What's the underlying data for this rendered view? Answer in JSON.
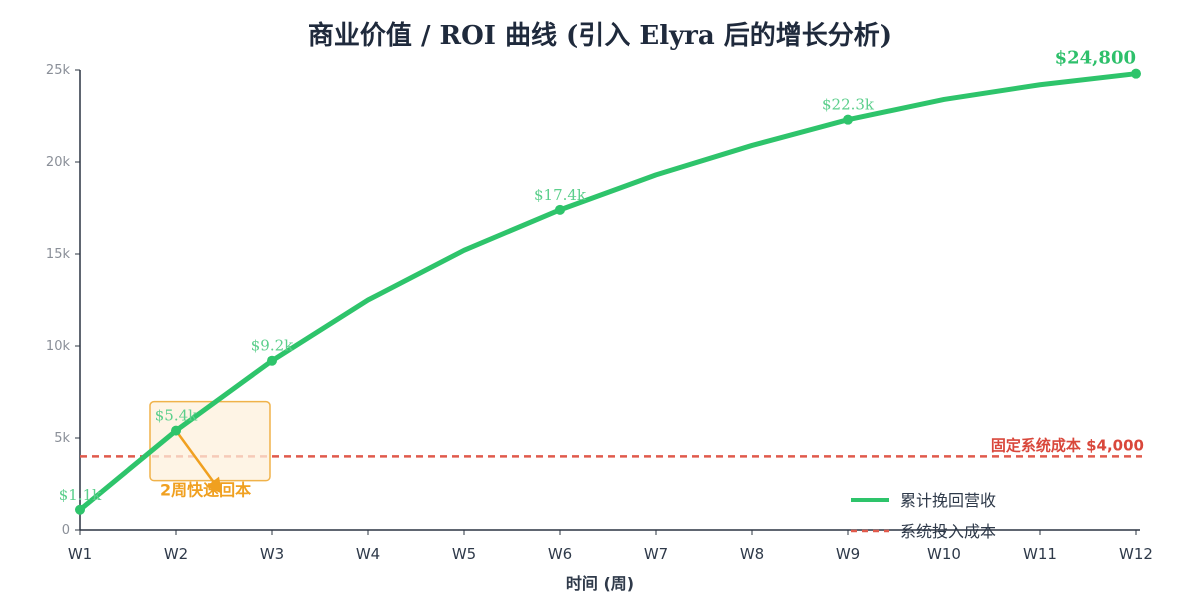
{
  "chart_data": {
    "type": "line",
    "title": "商业价值 / ROI 曲线 (引入 Elyra 后的增长分析)",
    "xlabel": "时间 (周)",
    "ylabel": "",
    "categories": [
      "W1",
      "W2",
      "W3",
      "W4",
      "W5",
      "W6",
      "W7",
      "W8",
      "W9",
      "W10",
      "W11",
      "W12"
    ],
    "ylim": [
      0,
      25000
    ],
    "yticks": [
      0,
      5000,
      10000,
      15000,
      20000,
      25000
    ],
    "ytick_labels": [
      "0",
      "5k",
      "10k",
      "15k",
      "20k",
      "25k"
    ],
    "grid": false,
    "series": [
      {
        "name": "累计挽回营收",
        "color": "#2ec46b",
        "values": [
          1100,
          5400,
          9200,
          12500,
          15200,
          17400,
          19300,
          20900,
          22300,
          23400,
          24200,
          24800
        ]
      }
    ],
    "data_labels": [
      {
        "index": 0,
        "text": "$1.1k"
      },
      {
        "index": 1,
        "text": "$5.4k"
      },
      {
        "index": 2,
        "text": "$9.2k"
      },
      {
        "index": 5,
        "text": "$17.4k"
      },
      {
        "index": 8,
        "text": "$22.3k"
      },
      {
        "index": 11,
        "text": "$24,800"
      }
    ],
    "reference_line": {
      "name": "系统投入成本",
      "value": 4000,
      "label": "固定系统成本 $4,000",
      "color": "#d9473b"
    },
    "annotation": {
      "text": "2周快速回本",
      "color": "#f0a020"
    },
    "legend": {
      "placement": "bottom-right",
      "entries": [
        "累计挽回营收",
        "系统投入成本"
      ]
    }
  }
}
